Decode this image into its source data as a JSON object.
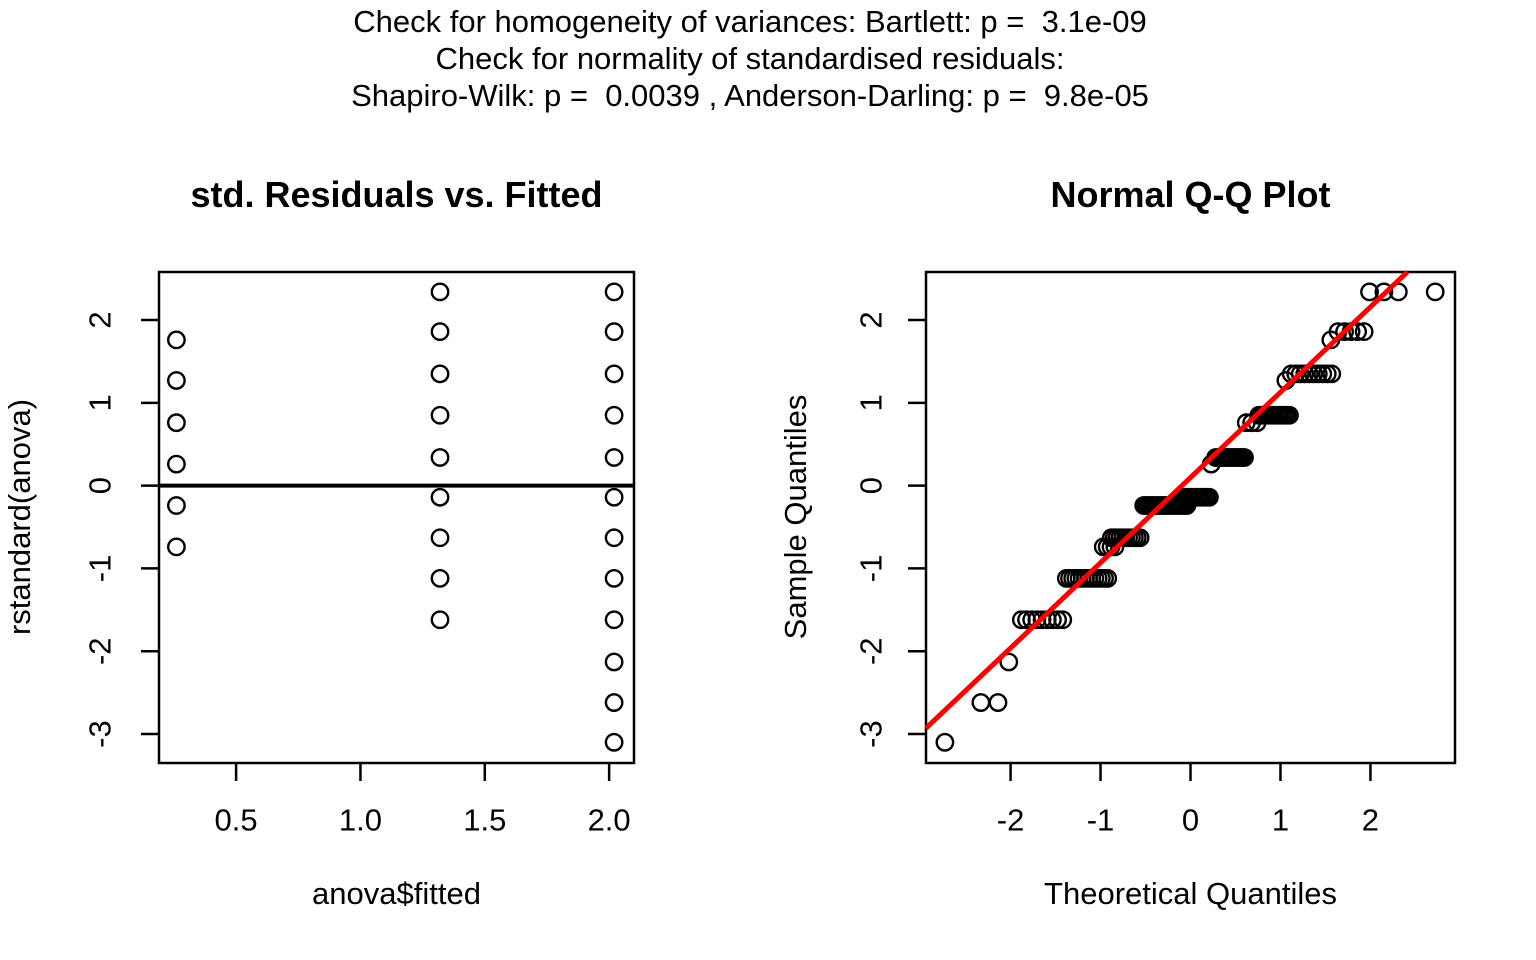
{
  "header": {
    "line1": "Check for homogeneity of variances: Bartlett: p =  3.1e-09",
    "line2": "Check for normality of standardised residuals:",
    "line3": "Shapiro-Wilk: p =  0.0039 , Anderson-Darling: p =  9.8e-05"
  },
  "colors": {
    "background": "#ffffff",
    "text": "#000000",
    "points": "#000000",
    "box": "#000000",
    "zero_line": "#000000",
    "qq_line": "#ff0000"
  },
  "marker": {
    "shape": "open-circle",
    "radius": 8.2,
    "stroke_width": 2.4
  },
  "chart_data": [
    {
      "type": "scatter",
      "title": "std. Residuals vs. Fitted",
      "xlabel": "anova$fitted",
      "ylabel": "rstandard(anova)",
      "xlim": [
        0.19,
        2.1
      ],
      "ylim": [
        -3.35,
        2.58
      ],
      "xticks": [
        0.5,
        1.0,
        1.5,
        2.0
      ],
      "xtick_labels": [
        "0.5",
        "1.0",
        "1.5",
        "2.0"
      ],
      "yticks": [
        2,
        1,
        0,
        -1,
        -2,
        -3
      ],
      "ytick_labels": [
        "2",
        "1",
        "0",
        "-1",
        "-2",
        "-3"
      ],
      "grid": false,
      "legend": false,
      "hline_y": 0,
      "groups": [
        {
          "x": 0.26,
          "y": [
            1.76,
            1.27,
            0.76,
            0.26,
            -0.24,
            -0.74
          ]
        },
        {
          "x": 1.32,
          "y": [
            2.34,
            1.86,
            1.35,
            0.85,
            0.34,
            -0.14,
            -0.63,
            -1.12,
            -1.62
          ]
        },
        {
          "x": 2.02,
          "y": [
            2.34,
            1.86,
            1.35,
            0.85,
            0.34,
            -0.14,
            -0.63,
            -1.12,
            -1.62,
            -2.13,
            -2.62,
            -3.1
          ]
        }
      ]
    },
    {
      "type": "scatter",
      "title": "Normal Q-Q Plot",
      "xlabel": "Theoretical Quantiles",
      "ylabel": "Sample Quantiles",
      "xlim": [
        -2.94,
        2.94
      ],
      "ylim": [
        -3.35,
        2.58
      ],
      "xticks": [
        -2,
        -1,
        0,
        1,
        2
      ],
      "xtick_labels": [
        "-2",
        "-1",
        "0",
        "1",
        "2"
      ],
      "yticks": [
        2,
        1,
        0,
        -1,
        -2,
        -3
      ],
      "ytick_labels": [
        "2",
        "1",
        "0",
        "-1",
        "-2",
        "-3"
      ],
      "grid": false,
      "legend": false,
      "bands": [
        {
          "value": -3.1,
          "theo_from": -2.73,
          "theo_to": -2.73,
          "count": 1
        },
        {
          "value": -2.62,
          "theo_from": -2.33,
          "theo_to": -2.14,
          "count": 2
        },
        {
          "value": -2.13,
          "theo_from": -2.02,
          "theo_to": -2.02,
          "count": 1
        },
        {
          "value": -1.62,
          "theo_from": -1.88,
          "theo_to": -1.42,
          "count": 9
        },
        {
          "value": -1.12,
          "theo_from": -1.38,
          "theo_to": -0.92,
          "count": 14
        },
        {
          "value": -0.74,
          "theo_from": -0.97,
          "theo_to": -0.84,
          "count": 4
        },
        {
          "value": -0.63,
          "theo_from": -0.88,
          "theo_to": -0.56,
          "count": 11
        },
        {
          "value": -0.24,
          "theo_from": -0.52,
          "theo_to": -0.04,
          "count": 20
        },
        {
          "value": -0.14,
          "theo_from": -0.1,
          "theo_to": 0.21,
          "count": 13
        },
        {
          "value": 0.26,
          "theo_from": 0.23,
          "theo_to": 0.23,
          "count": 1
        },
        {
          "value": 0.34,
          "theo_from": 0.28,
          "theo_to": 0.6,
          "count": 15
        },
        {
          "value": 0.76,
          "theo_from": 0.62,
          "theo_to": 0.74,
          "count": 3
        },
        {
          "value": 0.85,
          "theo_from": 0.76,
          "theo_to": 1.1,
          "count": 14
        },
        {
          "value": 1.27,
          "theo_from": 1.06,
          "theo_to": 1.06,
          "count": 1
        },
        {
          "value": 1.35,
          "theo_from": 1.12,
          "theo_to": 1.57,
          "count": 10
        },
        {
          "value": 1.76,
          "theo_from": 1.56,
          "theo_to": 1.56,
          "count": 1
        },
        {
          "value": 1.86,
          "theo_from": 1.64,
          "theo_to": 1.93,
          "count": 5
        },
        {
          "value": 2.34,
          "theo_from": 1.99,
          "theo_to": 2.31,
          "count": 3
        },
        {
          "value": 2.34,
          "theo_from": 2.72,
          "theo_to": 2.72,
          "count": 1
        }
      ],
      "ref_line": {
        "x1": -2.94,
        "y1": -2.93,
        "x2": 2.41,
        "y2": 2.58,
        "color": "#ff0000",
        "width": 5
      }
    }
  ]
}
